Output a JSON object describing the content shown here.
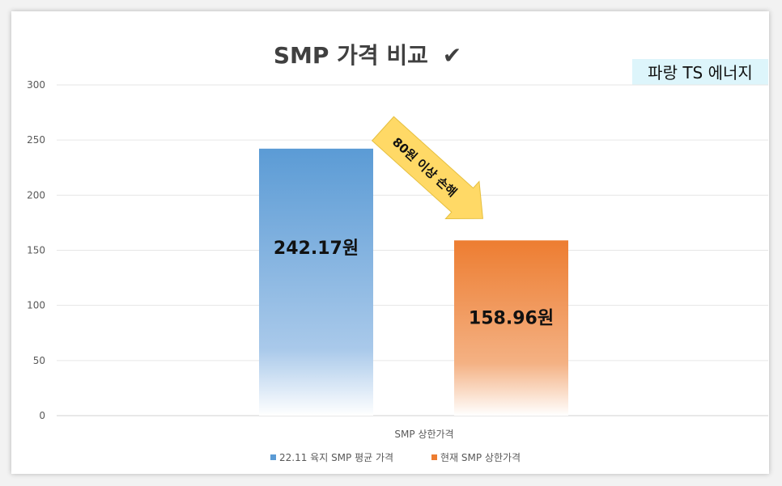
{
  "chart_data": {
    "type": "bar",
    "title": "SMP 가격 비교",
    "title_mark": "✔",
    "categories": [
      "SMP 상한가격"
    ],
    "series": [
      {
        "name": "22.11 육지 SMP 평균 가격",
        "values": [
          242.17
        ],
        "color": "#5b9bd5",
        "label": "242.17원"
      },
      {
        "name": "현재 SMP 상한가격",
        "values": [
          158.96
        ],
        "color": "#ed7d31",
        "label": "158.96원"
      }
    ],
    "ylim": [
      0,
      300
    ],
    "yticks": [
      0,
      50,
      100,
      150,
      200,
      250,
      300
    ],
    "grid": true,
    "legend": "bottom",
    "annotation": "80원 이상 손해"
  },
  "brand": "파랑 TS 에너지"
}
